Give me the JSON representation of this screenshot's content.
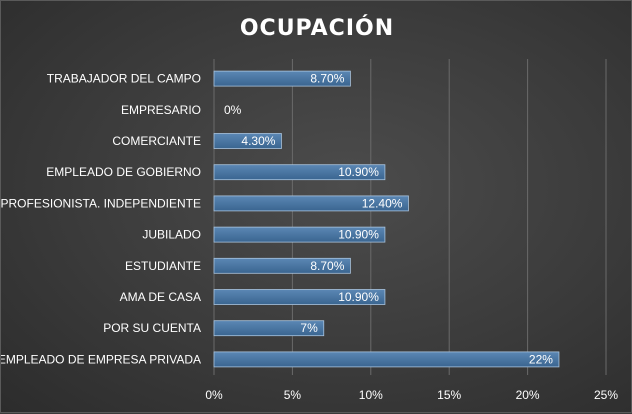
{
  "chart_data": {
    "type": "bar",
    "orientation": "horizontal",
    "title": "OCUPACIÓN",
    "xlabel": "",
    "ylabel": "",
    "categories": [
      "TRABAJADOR DEL CAMPO",
      "EMPRESARIO",
      "COMERCIANTE",
      "EMPLEADO DE GOBIERNO",
      "PROFESIONISTA. INDEPENDIENTE",
      "JUBILADO",
      "ESTUDIANTE",
      "AMA DE CASA",
      "POR SU CUENTA",
      "EMPLEADO DE EMPRESA PRIVADA"
    ],
    "values": [
      8.7,
      0,
      4.3,
      10.9,
      12.4,
      10.9,
      8.7,
      10.9,
      7,
      22
    ],
    "data_labels": [
      "8.70%",
      "0%",
      "4.30%",
      "10.90%",
      "12.40%",
      "10.90%",
      "8.70%",
      "10.90%",
      "7%",
      "22%"
    ],
    "x_ticks": [
      "0%",
      "5%",
      "10%",
      "15%",
      "20%",
      "25%"
    ],
    "xlim": [
      0,
      25
    ],
    "grid": true,
    "legend": "none",
    "colors": {
      "bar_top": "#5b87b4",
      "bar_bottom": "#3a6590",
      "bar_edge": "#a9c4de",
      "grid": "#6a6a6a"
    }
  }
}
